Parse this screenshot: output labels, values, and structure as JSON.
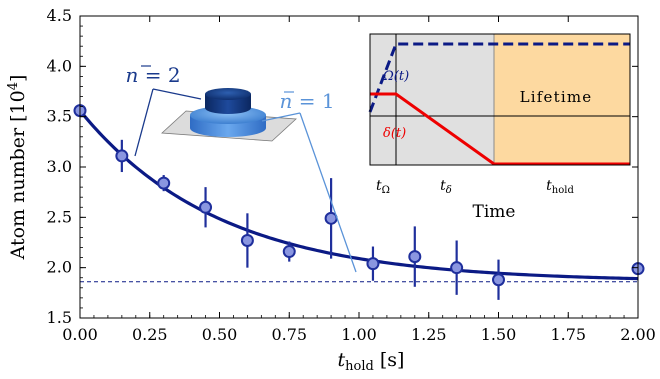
{
  "chart_data": {
    "type": "scatter",
    "xlabel": {
      "main": "t",
      "sub": "hold",
      "unit": " [s]"
    },
    "ylabel": {
      "main": "Atom number [10",
      "sup": "4",
      "close": "]"
    },
    "xlim": [
      0.0,
      2.0
    ],
    "ylim": [
      1.5,
      4.5
    ],
    "x_ticks": [
      "0.00",
      "0.25",
      "0.50",
      "0.75",
      "1.00",
      "1.25",
      "1.50",
      "1.75",
      "2.00"
    ],
    "y_ticks": [
      "1.5",
      "2.0",
      "2.5",
      "3.0",
      "3.5",
      "4.0",
      "4.5"
    ],
    "points": [
      {
        "x": 0.0,
        "y": 3.56,
        "err": 0.0
      },
      {
        "x": 0.15,
        "y": 3.11,
        "err": 0.16
      },
      {
        "x": 0.3,
        "y": 2.84,
        "err": 0.08
      },
      {
        "x": 0.45,
        "y": 2.6,
        "err": 0.2
      },
      {
        "x": 0.6,
        "y": 2.27,
        "err": 0.27
      },
      {
        "x": 0.75,
        "y": 2.16,
        "err": 0.1
      },
      {
        "x": 0.9,
        "y": 2.49,
        "err": 0.4
      },
      {
        "x": 1.05,
        "y": 2.04,
        "err": 0.17
      },
      {
        "x": 1.2,
        "y": 2.11,
        "err": 0.3
      },
      {
        "x": 1.35,
        "y": 2.0,
        "err": 0.27
      },
      {
        "x": 1.5,
        "y": 1.88,
        "err": 0.2
      },
      {
        "x": 2.0,
        "y": 1.99,
        "err": 0.0
      }
    ],
    "fit": {
      "type": "exponential",
      "y_inf": 1.86,
      "amplitude": 1.7,
      "tau": 0.5
    },
    "asymptote_y": 1.86,
    "annotations": {
      "n2": {
        "bar": "n",
        "text": " = 2"
      },
      "n1": {
        "bar": "n",
        "text": " = 1"
      }
    },
    "inset": {
      "xlabel": "Time",
      "omega_label": "Ω(t)",
      "delta_label": "δ(t)",
      "lifetime_label": "Lifetime",
      "segments": [
        {
          "main": "t",
          "sub": "Ω"
        },
        {
          "main": "t",
          "sub": "δ"
        },
        {
          "main": "t",
          "sub": "hold"
        }
      ]
    },
    "colors": {
      "fit": "#0b1a85",
      "marker_fill": "#8a96e0",
      "marker_edge": "#1f2f9c",
      "errorbar": "#1f2f9c",
      "n2": "#1a3a8c",
      "n1": "#5a93d8",
      "omega": "#0b1a85",
      "delta": "#ee0000",
      "inset_prep_bg": "#e0e0e0",
      "inset_hold_bg": "#fdd9a0"
    }
  }
}
